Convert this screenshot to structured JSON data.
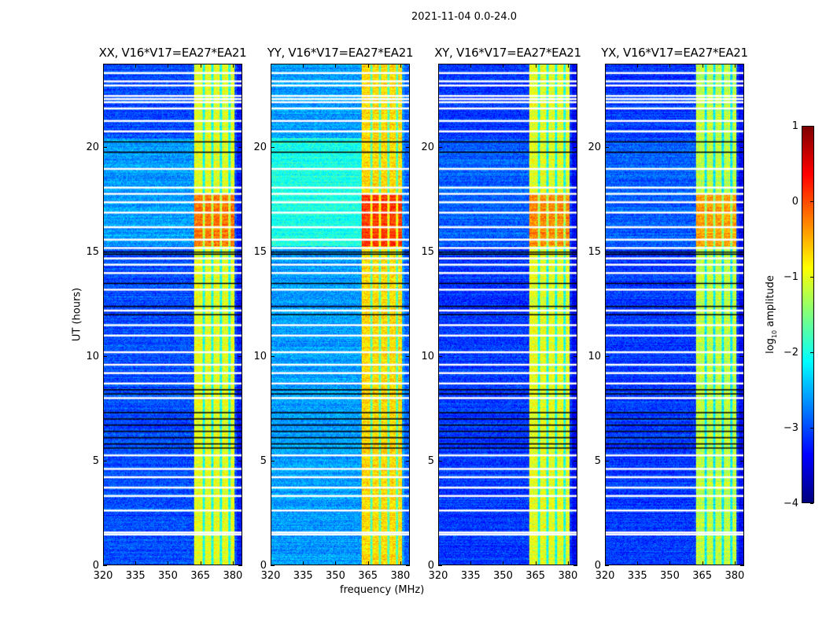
{
  "chart_data": {
    "type": "heatmap",
    "title": "2021-11-04 0.0-24.0",
    "xlabel": "frequency (MHz)",
    "ylabel": "UT (hours)",
    "xlim": [
      320,
      384.4
    ],
    "ylim": [
      0,
      24
    ],
    "xticks": [
      320,
      335,
      350,
      365,
      380
    ],
    "yticks": [
      0,
      5,
      10,
      15,
      20
    ],
    "colorbar": {
      "label": "log10 amplitude",
      "label_main": "log",
      "label_sub": "10",
      "label_rest": " amplitude",
      "range": [
        -4,
        1
      ],
      "ticks": [
        1,
        0,
        -1,
        -2,
        -3,
        -4
      ],
      "tick_labels": [
        "1",
        "0",
        "−1",
        "−2",
        "−3",
        "−4"
      ],
      "colormap": "jet"
    },
    "panels": [
      {
        "title": "XX, V16*V17=EA27*EA21",
        "background_level": -3.0,
        "band_level": -1.0,
        "hot_level": -0.2,
        "quiet_level": -2.6
      },
      {
        "title": "YY, V16*V17=EA27*EA21",
        "background_level": -2.6,
        "band_level": -0.7,
        "hot_level": 0.1,
        "quiet_level": -2.0
      },
      {
        "title": "XY, V16*V17=EA27*EA21",
        "background_level": -3.1,
        "band_level": -1.0,
        "hot_level": -0.3,
        "quiet_level": -2.9
      },
      {
        "title": "YX, V16*V17=EA27*EA21",
        "background_level": -3.1,
        "band_level": -1.2,
        "hot_level": -0.4,
        "quiet_level": -2.9
      }
    ],
    "rfi_band_mhz": [
      362,
      381
    ],
    "band_gaps_mhz": [
      366.5,
      370.5,
      374.5,
      378.5
    ],
    "hot_period_hours": [
      15.3,
      17.8
    ],
    "quiet_period_hours": [
      15.3,
      20.5
    ],
    "flagged_white_hours": [
      1.45,
      1.55,
      2.6,
      3.3,
      3.7,
      4.2,
      4.6,
      5.25,
      8.0,
      8.7,
      9.2,
      9.6,
      10.2,
      11.0,
      11.5,
      12.2,
      13.2,
      14.0,
      14.4,
      14.7,
      15.2,
      15.6,
      16.2,
      16.9,
      17.4,
      17.8,
      18.1,
      19.0,
      20.8,
      21.3,
      21.9,
      22.2,
      22.35,
      22.5,
      23.0,
      23.2,
      23.6
    ],
    "flagged_black_hours": [
      5.6,
      5.8,
      6.1,
      6.4,
      6.7,
      7.0,
      7.3,
      8.2,
      8.4,
      12.0,
      12.4,
      13.5,
      14.9,
      15.0,
      19.8,
      20.3
    ]
  }
}
